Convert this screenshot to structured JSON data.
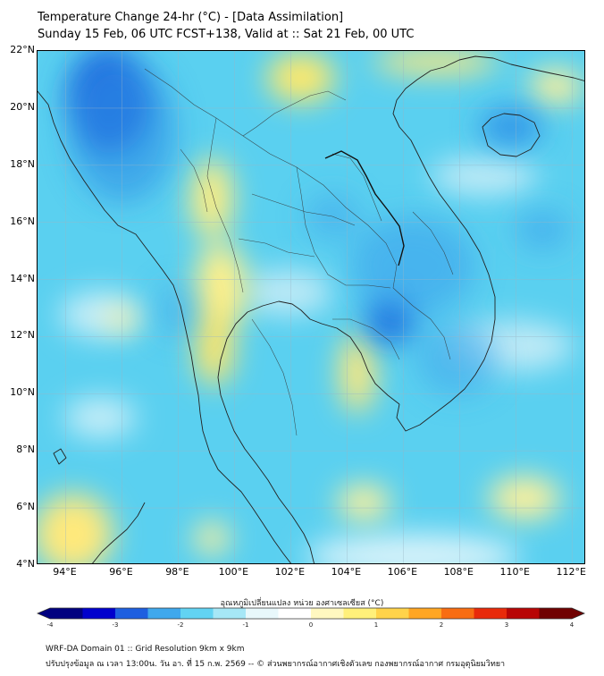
{
  "title": {
    "line1": "Temperature Change 24-hr (°C) - [Data Assimilation]",
    "line2": "Sunday 15 Feb, 06 UTC FCST+138, Valid at :: Sat 21 Feb, 00 UTC"
  },
  "map": {
    "lat_range": [
      4,
      22
    ],
    "lon_range": [
      93,
      112.5
    ],
    "lat_ticks": [
      "22°N",
      "20°N",
      "18°N",
      "16°N",
      "14°N",
      "12°N",
      "10°N",
      "8°N",
      "6°N",
      "4°N"
    ],
    "lon_ticks": [
      "94°E",
      "96°E",
      "98°E",
      "100°E",
      "102°E",
      "104°E",
      "106°E",
      "108°E",
      "110°E",
      "112°E"
    ],
    "grid": true,
    "background_color": "#5ad0f0",
    "features": [
      {
        "name": "strong-cooling-myanmar-north",
        "value": -2.5,
        "lon": 95.6,
        "lat": 20.5
      },
      {
        "name": "cooling-cambodia",
        "value": -2.0,
        "lon": 105.9,
        "lat": 12.8
      },
      {
        "name": "cooling-hainan",
        "value": -1.8,
        "lon": 109.8,
        "lat": 19.3
      },
      {
        "name": "warming-laos-north",
        "value": 0.8,
        "lon": 101.5,
        "lat": 21.3
      },
      {
        "name": "warming-thailand-west",
        "value": 0.8,
        "lon": 99.3,
        "lat": 12.6
      },
      {
        "name": "warming-southwest",
        "value": 0.6,
        "lon": 94.2,
        "lat": 5.2
      }
    ]
  },
  "colorbar": {
    "title": "อุณหภูมิเปลี่ยนแปลง หน่วย องศาเซลเซียส (°C)",
    "min": -4,
    "max": 4,
    "ticks": [
      "-4",
      "-3",
      "-2",
      "-1",
      "0",
      "1",
      "2",
      "3",
      "4"
    ],
    "colors": [
      "#000080",
      "#0000cd",
      "#1e5fe0",
      "#3fa8ec",
      "#62d3f2",
      "#a6e7f6",
      "#e8f8fb",
      "#ffffff",
      "#fff8c0",
      "#fff07a",
      "#ffd34a",
      "#ffa623",
      "#f86d12",
      "#e82a0a",
      "#b80505",
      "#700000"
    ]
  },
  "footer": {
    "line1": "WRF-DA Domain 01 :: Grid Resolution 9km x 9km",
    "line2": "ปรับปรุงข้อมูล ณ เวลา 13:00น. วัน อา. ที่ 15 ก.พ. 2569 -- © ส่วนพยากรณ์อากาศเชิงตัวเลข กองพยากรณ์อากาศ กรมอุตุนิยมวิทยา"
  }
}
